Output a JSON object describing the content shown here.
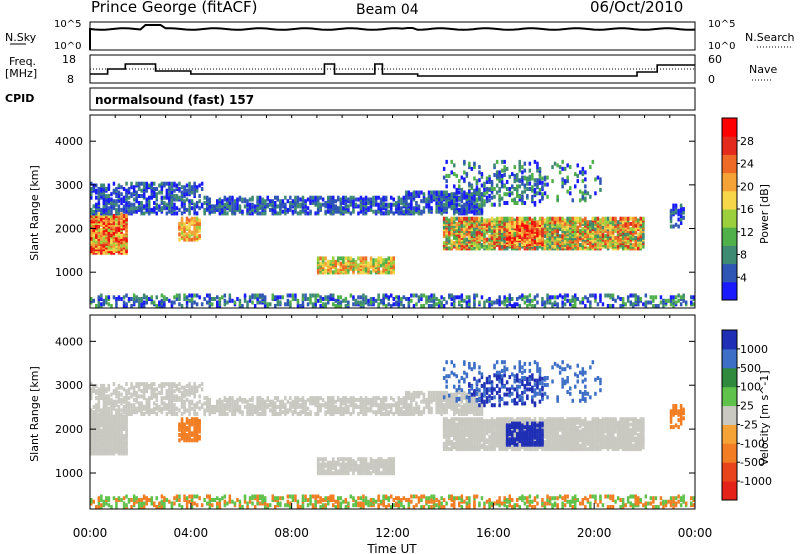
{
  "header": {
    "station": "Prince George (fitACF)",
    "beam": "Beam 04",
    "date": "06/Oct/2010"
  },
  "sky_panel": {
    "left_label": "N.Sky",
    "right_label": "N.Search",
    "ticks_left": [
      "10^5",
      "10^0"
    ],
    "ticks_right": [
      "10^5",
      "10^0"
    ]
  },
  "freq_panel": {
    "left_label_line1": "Freq.",
    "left_label_line2": "[MHz]",
    "right_label": "Nave",
    "ticks_left": [
      "18",
      "8"
    ],
    "ticks_right": [
      "60",
      "0"
    ]
  },
  "cpid": {
    "label": "CPID",
    "value": "normalsound (fast) 157"
  },
  "xaxis": {
    "ticks": [
      "00:00",
      "04:00",
      "08:00",
      "12:00",
      "16:00",
      "20:00",
      "00:00"
    ],
    "label": "Time UT"
  },
  "chart_data": [
    {
      "type": "heatmap",
      "title": "",
      "ylabel": "Slant Range [km]",
      "yticks": [
        "1000",
        "2000",
        "3000",
        "4000"
      ],
      "ylim": [
        180,
        4600
      ],
      "xlim_hours": [
        0,
        24
      ],
      "colorbar": {
        "label": "Power [dB]",
        "ticks": [
          "4",
          "8",
          "12",
          "16",
          "20",
          "24",
          "28"
        ],
        "colors": [
          "#1a1aff",
          "#2f55b5",
          "#3e8a73",
          "#4fb04a",
          "#9ccf3c",
          "#f7d64a",
          "#f5a236",
          "#ef6a25",
          "#e32a1d",
          "#ff0000"
        ]
      }
    },
    {
      "type": "heatmap",
      "title": "",
      "ylabel": "Slant Range [km]",
      "yticks": [
        "1000",
        "2000",
        "3000",
        "4000"
      ],
      "ylim": [
        180,
        4600
      ],
      "xlim_hours": [
        0,
        24
      ],
      "colorbar": {
        "label": "Velocity [m s^-1]",
        "ticks": [
          "1000",
          "500",
          "100",
          "25",
          "-25",
          "-100",
          "-500",
          "-1000"
        ],
        "colors": [
          "#1f2fb5",
          "#3d6fc7",
          "#2f8a3d",
          "#5fc24a",
          "#c9c9c2",
          "#f5a236",
          "#f27d22",
          "#e8431b",
          "#e5221a"
        ]
      }
    }
  ]
}
